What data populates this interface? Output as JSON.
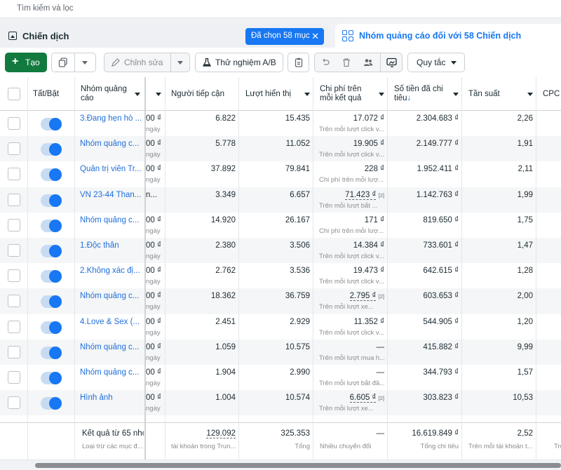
{
  "search": {
    "placeholder": "Tìm kiếm và lọc"
  },
  "tabs": {
    "campaign_label": "Chiến dịch",
    "selected_chip": "Đã chọn 58 mục",
    "adgroup_label": "Nhóm quảng cáo đối với 58 Chiến dịch"
  },
  "toolbar": {
    "create_label": "Tạo",
    "edit_label": "Chỉnh sửa",
    "ab_test_label": "Thử nghiệm A/B",
    "rules_label": "Quy tắc"
  },
  "columns": {
    "toggle": "Tất/Bật",
    "name": "Nhóm quảng cáo",
    "reach": "Người tiếp cận",
    "impressions": "Lượt hiển thị",
    "cost_per_result": "Chi phí trên mỗi kết quả",
    "amount_spent": "Số tiền đã chi tiêu",
    "amount_spent_sort": "↓",
    "frequency": "Tần suất",
    "cpc": "CPC"
  },
  "rows": [
    {
      "name": "3.Đang hẹn hò ...",
      "frag": "00 ₫",
      "frag_sub": "ngày",
      "reach": "6.822",
      "impressions": "15.435",
      "cpr": "17.072 ₫",
      "cpr_sub": "Trên mỗi lượt click v...",
      "spent": "2.304.683 ₫",
      "freq": "2,26",
      "on": true
    },
    {
      "name": "Nhóm quảng c...",
      "frag": "00 ₫",
      "frag_sub": "ngày",
      "reach": "5.778",
      "impressions": "11.052",
      "cpr": "19.905 ₫",
      "cpr_sub": "Trên mỗi lượt click v...",
      "spent": "2.149.777 ₫",
      "freq": "1,91",
      "on": true
    },
    {
      "name": "Quản trị viên Tr...",
      "frag": "00 ₫",
      "frag_sub": "ngày",
      "reach": "37.892",
      "impressions": "79.841",
      "cpr": "228 ₫",
      "cpr_sub": "Chi phí trên mỗi lượ...",
      "spent": "1.952.411 ₫",
      "freq": "2,11",
      "on": true
    },
    {
      "name": "VN 23-44 Than...",
      "frag": "n...",
      "frag_sub": "",
      "reach": "3.349",
      "impressions": "6.657",
      "cpr": "71.423 ₫",
      "cpr_note": "[2]",
      "cpr_sub": "Trên mỗi lượt bắt ...",
      "spent": "1.142.763 ₫",
      "freq": "1,99",
      "on": true
    },
    {
      "name": "Nhóm quảng c...",
      "frag": "00 ₫",
      "frag_sub": "ngày",
      "reach": "14.920",
      "impressions": "26.167",
      "cpr": "171 ₫",
      "cpr_sub": "Chi phí trên mỗi lượ...",
      "spent": "819.650 ₫",
      "freq": "1,75",
      "on": true
    },
    {
      "name": "1.Độc thân",
      "frag": "00 ₫",
      "frag_sub": "ngày",
      "reach": "2.380",
      "impressions": "3.506",
      "cpr": "14.384 ₫",
      "cpr_sub": "Trên mỗi lượt click v...",
      "spent": "733.601 ₫",
      "freq": "1,47",
      "on": true
    },
    {
      "name": "2.Không xác đị...",
      "frag": "00 ₫",
      "frag_sub": "ngày",
      "reach": "2.762",
      "impressions": "3.536",
      "cpr": "19.473 ₫",
      "cpr_sub": "Trên mỗi lượt click v...",
      "spent": "642.615 ₫",
      "freq": "1,28",
      "on": true
    },
    {
      "name": "Nhóm quảng c...",
      "frag": "00 ₫",
      "frag_sub": "ngày",
      "reach": "18.362",
      "impressions": "36.759",
      "cpr": "2.795 ₫",
      "cpr_note": "[2]",
      "cpr_sub": "Trên mỗi lượt xe...",
      "spent": "603.653 ₫",
      "freq": "2,00",
      "on": true
    },
    {
      "name": "4.Love & Sex (...",
      "frag": "00 ₫",
      "frag_sub": "ngày",
      "reach": "2.451",
      "impressions": "2.929",
      "cpr": "11.352 ₫",
      "cpr_sub": "Trên mỗi lượt click v...",
      "spent": "544.905 ₫",
      "freq": "1,20",
      "on": true
    },
    {
      "name": "Nhóm quảng c...",
      "frag": "00 ₫",
      "frag_sub": "ngày",
      "reach": "1.059",
      "impressions": "10.575",
      "cpr": "—",
      "cpr_sub": "Trên mỗi lượt mua h...",
      "spent": "415.882 ₫",
      "freq": "9,99",
      "on": true
    },
    {
      "name": "Nhóm quảng c...",
      "frag": "00 ₫",
      "frag_sub": "ngày",
      "reach": "1.904",
      "impressions": "2.990",
      "cpr": "—",
      "cpr_sub": "Trên mỗi lượt bắt đầ...",
      "spent": "344.793 ₫",
      "freq": "1,57",
      "on": true
    },
    {
      "name": "Hình ảnh",
      "frag": "00 ₫",
      "frag_sub": "ngày",
      "reach": "1.004",
      "impressions": "10.574",
      "cpr": "6.605 ₫",
      "cpr_note": "[2]",
      "cpr_sub": "Trên mỗi lượt xe...",
      "spent": "303.823 ₫",
      "freq": "10,53",
      "on": true
    }
  ],
  "footer": {
    "label": "Kết quả từ 65 nhó",
    "label_sub": "Loại trừ các mục đ...",
    "reach": "129.092",
    "reach_sub": "tài khoản trong Trun...",
    "impressions": "325.353",
    "impressions_sub": "Tổng",
    "cpr": "—",
    "cpr_sub": "Nhiều chuyển đổi",
    "spent": "16.619.849 ₫",
    "spent_sub": "Tổng chi tiêu",
    "freq": "2,52",
    "freq_sub": "Trên mỗi tài khoản t...",
    "cpc_sub": "Trê"
  }
}
